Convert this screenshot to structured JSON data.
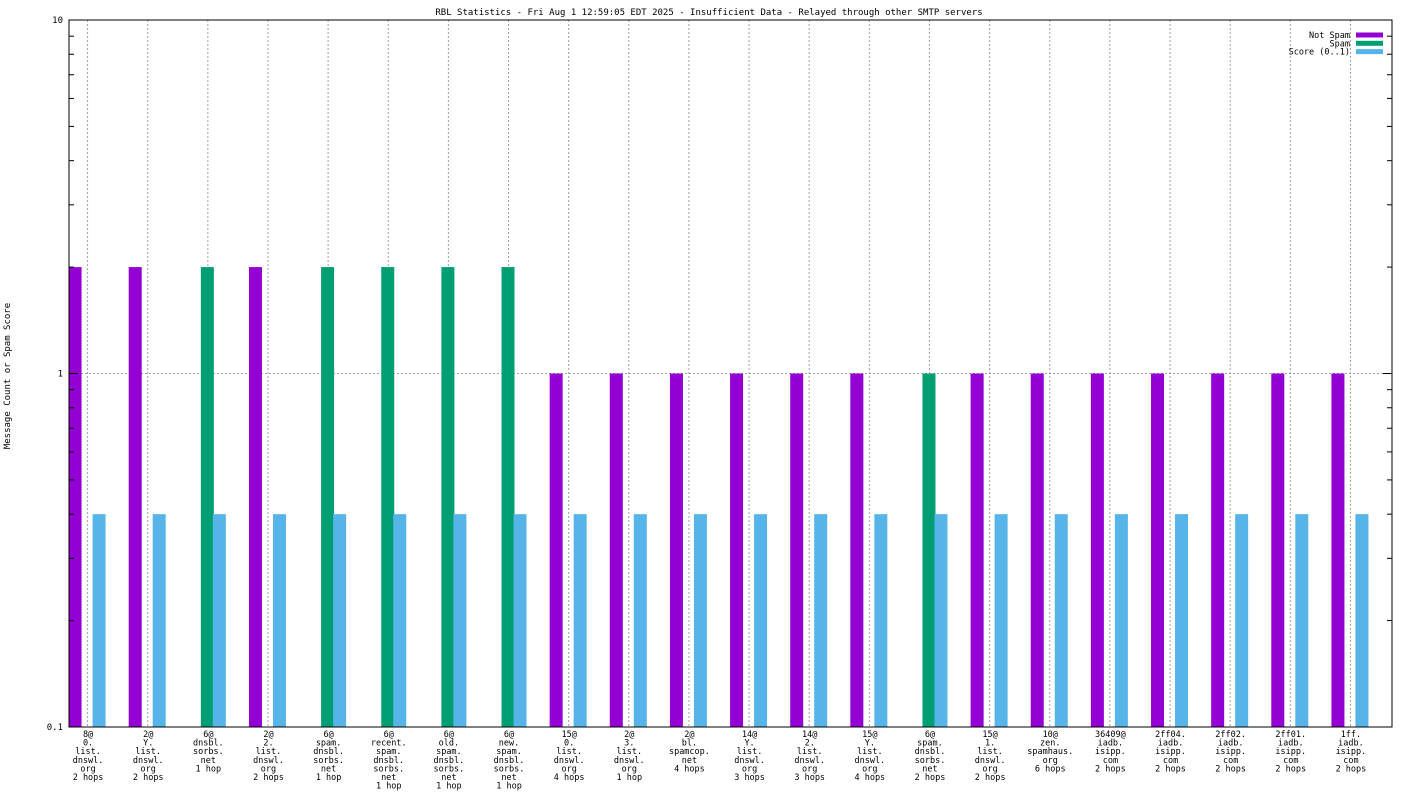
{
  "chart_data": {
    "type": "bar",
    "title": "RBL Statistics - Fri Aug  1 12:59:05 EDT 2025 - Insufficient Data - Relayed through other SMTP servers",
    "xlabel": "",
    "ylabel": "Message Count or Spam Score",
    "yscale": "log",
    "ylim": [
      0.1,
      10
    ],
    "yticks": [
      "0.1",
      "1",
      "10"
    ],
    "grid": true,
    "legend_position": "top-right",
    "categories": [
      "8@\n0.\nlist.\ndnswl.\norg\n2 hops",
      "2@\nY.\nlist.\ndnswl.\norg\n2 hops",
      "6@\ndnsbl.\nsorbs.\nnet\n1 hop",
      "2@\n2.\nlist.\ndnswl.\norg\n2 hops",
      "6@\nspam.\ndnsbl.\nsorbs.\nnet\n1 hop",
      "6@\nrecent.\nspam.\ndnsbl.\nsorbs.\nnet\n1 hop",
      "6@\nold.\nspam.\ndnsbl.\nsorbs.\nnet\n1 hop",
      "6@\nnew.\nspam.\ndnsbl.\nsorbs.\nnet\n1 hop",
      "15@\n0.\nlist.\ndnswl.\norg\n4 hops",
      "2@\n3.\nlist.\ndnswl.\norg\n1 hop",
      "2@\nbl.\nspamcop.\nnet\n4 hops",
      "14@\nY.\nlist.\ndnswl.\norg\n3 hops",
      "14@\n2.\nlist.\ndnswl.\norg\n3 hops",
      "15@\nY.\nlist.\ndnswl.\norg\n4 hops",
      "6@\nspam.\ndnsbl.\nsorbs.\nnet\n2 hops",
      "15@\n1.\nlist.\ndnswl.\norg\n2 hops",
      "10@\nzen.\nspamhaus.\norg\n6 hops",
      "36409@\niadb.\nisipp.\ncom\n2 hops",
      "2ff04.\niadb.\nisipp.\ncom\n2 hops",
      "2ff02.\niadb.\nisipp.\ncom\n2 hops",
      "2ff01.\niadb.\nisipp.\ncom\n2 hops",
      "1ff.\niadb.\nisipp.\ncom\n2 hops"
    ],
    "series": [
      {
        "name": "Not Spam",
        "color": "#9400d3",
        "values": [
          2,
          2,
          null,
          2,
          null,
          null,
          null,
          null,
          1,
          1,
          1,
          1,
          1,
          1,
          null,
          1,
          1,
          1,
          1,
          1,
          1,
          1
        ]
      },
      {
        "name": "Spam",
        "color": "#009e73",
        "values": [
          null,
          null,
          2,
          null,
          2,
          2,
          2,
          2,
          null,
          null,
          null,
          null,
          null,
          null,
          1,
          null,
          null,
          null,
          null,
          null,
          null,
          null
        ]
      },
      {
        "name": "Score (0..1)",
        "color": "#56b4e9",
        "values": [
          0.4,
          0.4,
          0.4,
          0.4,
          0.4,
          0.4,
          0.4,
          0.4,
          0.4,
          0.4,
          0.4,
          0.4,
          0.4,
          0.4,
          0.4,
          0.4,
          0.4,
          0.4,
          0.4,
          0.4,
          0.4,
          0.4
        ]
      }
    ]
  }
}
